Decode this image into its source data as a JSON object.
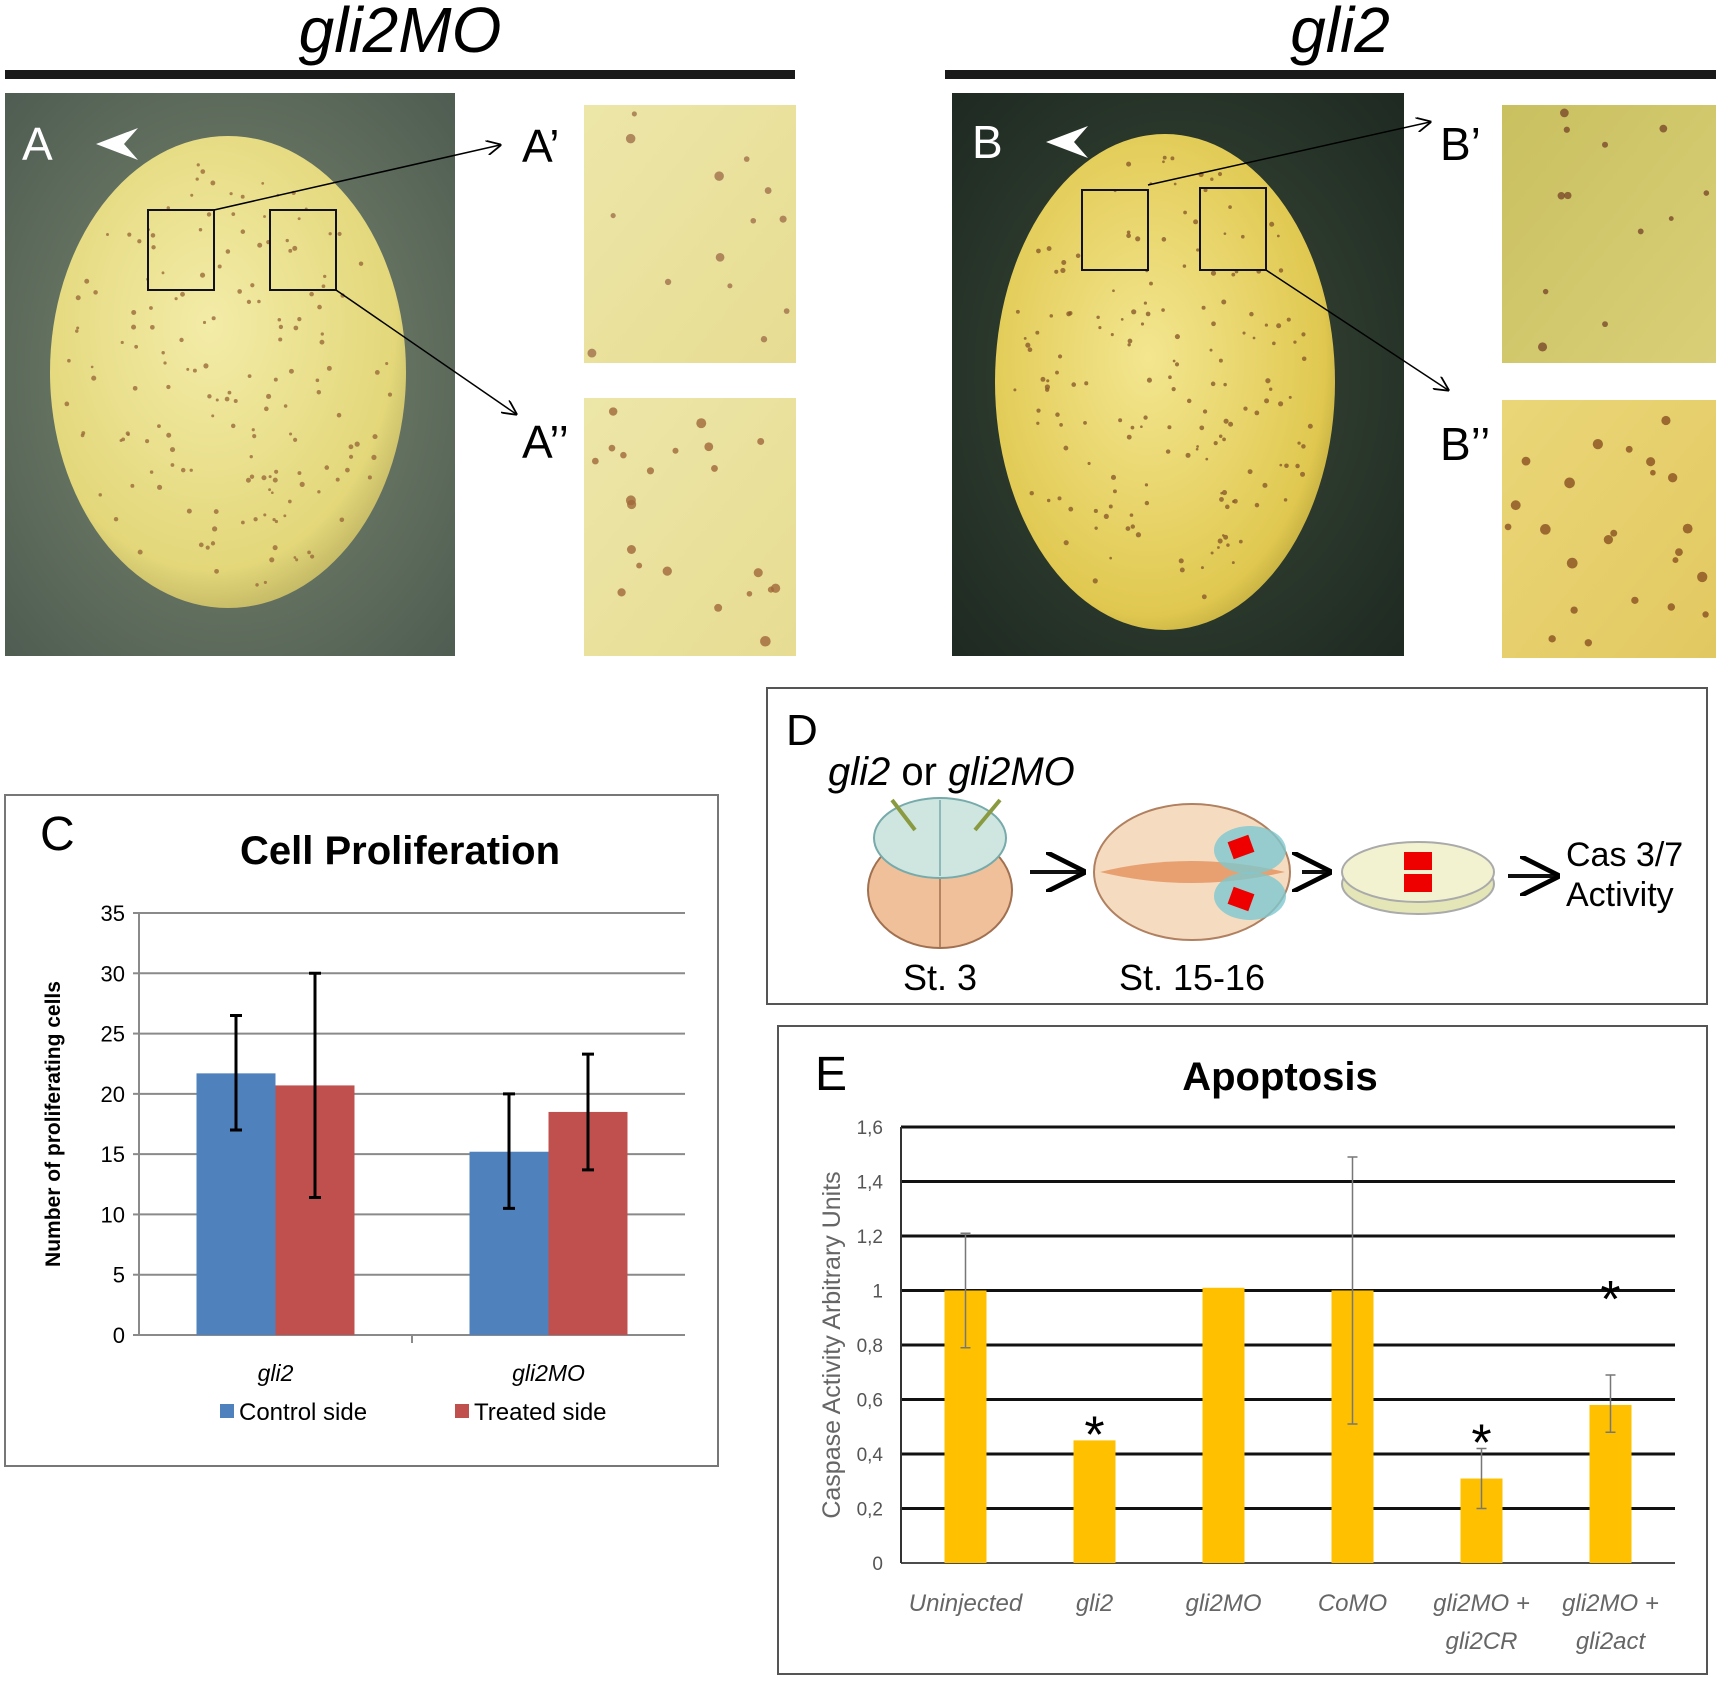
{
  "panels": {
    "left_header": "gli2MO",
    "right_header": "gli2",
    "A": {
      "label": "A",
      "inset1": "A’",
      "inset2": "A’’"
    },
    "B": {
      "label": "B",
      "inset1": "B’",
      "inset2": "B’’"
    },
    "D": {
      "label": "D",
      "title_part1": "gli2",
      "title_or": " or ",
      "title_part2": "gli2MO",
      "stage1": "St. 3",
      "stage2": "St. 15-16",
      "readout_line1": "Cas 3/7",
      "readout_line2": "Activity"
    }
  },
  "colors": {
    "control": "#4f81bd",
    "treated": "#c0504d",
    "apoptosis": "#ffc000",
    "yolk": "#efe4a0"
  },
  "chart_data": [
    {
      "panel": "C",
      "type": "bar",
      "title": "Cell Proliferation",
      "ylabel": "Number of proliferating cells",
      "xlabel": "",
      "ylim": [
        0,
        35
      ],
      "yticks": [
        "0",
        "5",
        "10",
        "15",
        "20",
        "25",
        "30",
        "35"
      ],
      "categories": [
        "gli2",
        "gli2MO"
      ],
      "series": [
        {
          "name": "Control side",
          "values": [
            21.7,
            15.2
          ],
          "err_low": [
            17.0,
            10.5
          ],
          "err_high": [
            26.5,
            20.0
          ]
        },
        {
          "name": "Treated side",
          "values": [
            20.7,
            18.5
          ],
          "err_low": [
            11.4,
            13.7
          ],
          "err_high": [
            30.0,
            23.3
          ]
        }
      ],
      "grid": true,
      "legend": "bottom"
    },
    {
      "panel": "E",
      "type": "bar",
      "title": "Apoptosis",
      "ylabel": "Caspase Activity Arbitrary Units",
      "xlabel": "",
      "ylim": [
        0,
        1.6
      ],
      "yticks": [
        "0",
        "0,2",
        "0,4",
        "0,6",
        "0,8",
        "1",
        "1,2",
        "1,4",
        "1,6"
      ],
      "categories": [
        [
          "Uninjected"
        ],
        [
          "gli2"
        ],
        [
          "gli2MO"
        ],
        [
          "CoMO"
        ],
        [
          "gli2MO +",
          "gli2CR"
        ],
        [
          "gli2MO +",
          "gli2act"
        ]
      ],
      "values": [
        1.0,
        0.45,
        1.01,
        1.0,
        0.31,
        0.58
      ],
      "err_low": [
        0.79,
        0.45,
        1.01,
        0.51,
        0.2,
        0.48
      ],
      "err_high": [
        1.21,
        0.45,
        1.01,
        1.49,
        0.42,
        0.69
      ],
      "significant": [
        false,
        true,
        false,
        false,
        true,
        true
      ],
      "significance_mark": "*",
      "grid": true
    }
  ]
}
